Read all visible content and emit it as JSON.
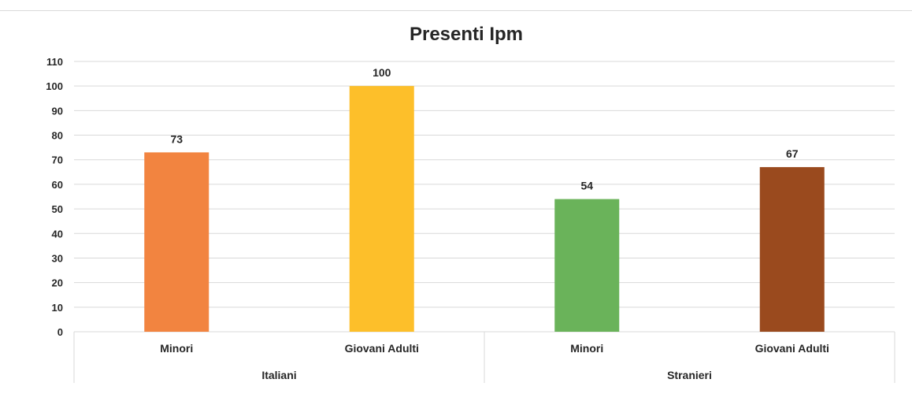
{
  "chart_data": {
    "type": "bar",
    "title": "Presenti Ipm",
    "xlabel": "",
    "ylabel": "",
    "ylim": [
      0,
      110
    ],
    "yticks": [
      0,
      10,
      20,
      30,
      40,
      50,
      60,
      70,
      80,
      90,
      100,
      110
    ],
    "grid": true,
    "groups": [
      {
        "label": "Italiani",
        "categories": [
          "Minori",
          "Giovani Adulti"
        ]
      },
      {
        "label": "Stranieri",
        "categories": [
          "Minori",
          "Giovani Adulti"
        ]
      }
    ],
    "categories": [
      "Minori",
      "Giovani Adulti",
      "Minori",
      "Giovani Adulti"
    ],
    "values": [
      73,
      100,
      54,
      67
    ],
    "colors": [
      "#f28440",
      "#fdbf2a",
      "#6ab35a",
      "#9a4a1e"
    ],
    "data_labels": [
      "73",
      "100",
      "54",
      "67"
    ]
  }
}
